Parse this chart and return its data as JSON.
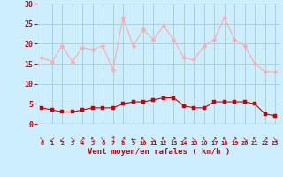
{
  "x": [
    0,
    1,
    2,
    3,
    4,
    5,
    6,
    7,
    8,
    9,
    10,
    11,
    12,
    13,
    14,
    15,
    16,
    17,
    18,
    19,
    20,
    21,
    22,
    23
  ],
  "rafales": [
    16.5,
    15.5,
    19.5,
    15.5,
    19,
    18.5,
    19.5,
    13.5,
    26.5,
    19.5,
    23.5,
    21,
    24.5,
    21,
    16.5,
    16,
    19.5,
    21,
    26.5,
    21,
    19.5,
    15,
    13,
    13
  ],
  "moyen": [
    4,
    3.5,
    3,
    3,
    3.5,
    4,
    4,
    4,
    5,
    5.5,
    5.5,
    6,
    6.5,
    6.5,
    4.5,
    4,
    4,
    5.5,
    5.5,
    5.5,
    5.5,
    5,
    2.5,
    2
  ],
  "rafales_color": "#ffaaaa",
  "moyen_color": "#cc0000",
  "bg_color": "#cceeff",
  "grid_color": "#aacccc",
  "xlabel": "Vent moyen/en rafales ( km/h )",
  "xlabel_color": "#cc0000",
  "tick_color": "#cc0000",
  "ylim": [
    0,
    30
  ],
  "yticks": [
    0,
    5,
    10,
    15,
    20,
    25,
    30
  ],
  "arrow_chars": [
    "↘",
    "↙",
    "↙",
    "↘",
    "↗",
    "↖",
    "↘",
    "↑",
    "↗",
    "←",
    "↖",
    "↘",
    "↖",
    "↗",
    "↗",
    "↘",
    "↖",
    "↗",
    "↖",
    "↗",
    "↘",
    "↖",
    "↗",
    "↘"
  ],
  "marker_size": 2.5,
  "line_width": 0.8
}
